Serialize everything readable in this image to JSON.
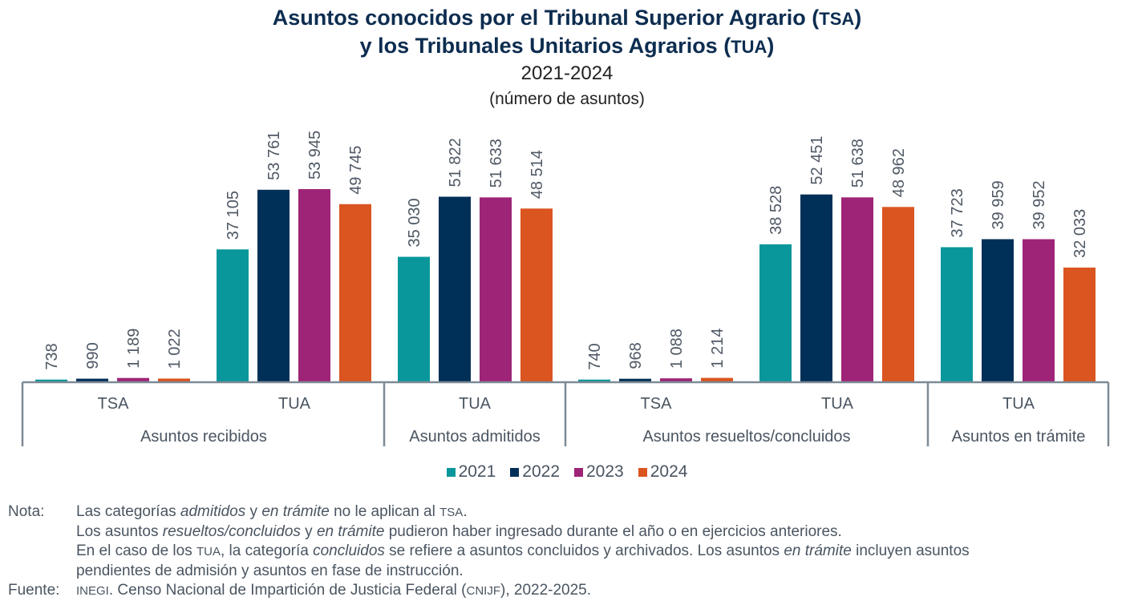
{
  "title": {
    "line1_text": "Asuntos conocidos por el Tribunal Superior Agrario (",
    "line1_abbr": "TSA",
    "line1_close": ")",
    "line2_text": "y los Tribunales Unitarios Agrarios (",
    "line2_abbr": "TUA",
    "line2_close": ")",
    "period": "2021-2024",
    "unit": "(número de asuntos)"
  },
  "colors": {
    "2021": "#0a979b",
    "2022": "#003057",
    "2023": "#9e2477",
    "2024": "#db5520",
    "axis": "#7d8a96"
  },
  "legend": [
    {
      "label": "2021",
      "color": "#0a979b"
    },
    {
      "label": "2022",
      "color": "#003057"
    },
    {
      "label": "2023",
      "color": "#9e2477"
    },
    {
      "label": "2024",
      "color": "#db5520"
    }
  ],
  "chart_data": {
    "type": "bar",
    "title": "Asuntos conocidos por el Tribunal Superior Agrario (TSA) y los Tribunales Unitarios Agrarios (TUA) 2021-2024 (número de asuntos)",
    "xlabel": "",
    "ylabel": "",
    "ylim": [
      0,
      60000
    ],
    "grid": false,
    "legend_position": "bottom",
    "categories": [
      {
        "group": "Asuntos recibidos",
        "sub": "TSA"
      },
      {
        "group": "Asuntos recibidos",
        "sub": "TUA"
      },
      {
        "group": "Asuntos admitidos",
        "sub": "TUA"
      },
      {
        "group": "Asuntos resueltos/concluidos",
        "sub": "TSA"
      },
      {
        "group": "Asuntos resueltos/concluidos",
        "sub": "TUA"
      },
      {
        "group": "Asuntos en trámite",
        "sub": "TUA"
      }
    ],
    "groups": [
      "Asuntos recibidos",
      "Asuntos admitidos",
      "Asuntos resueltos/concluidos",
      "Asuntos en trámite"
    ],
    "series": [
      {
        "name": "2021",
        "values": [
          738,
          37105,
          35030,
          740,
          38528,
          37723
        ],
        "labels": [
          "738",
          "37 105",
          "35 030",
          "740",
          "38 528",
          "37 723"
        ]
      },
      {
        "name": "2022",
        "values": [
          990,
          53761,
          51822,
          968,
          52451,
          39959
        ],
        "labels": [
          "990",
          "53 761",
          "51 822",
          "968",
          "52 451",
          "39 959"
        ]
      },
      {
        "name": "2023",
        "values": [
          1189,
          53945,
          51633,
          1088,
          51638,
          39952
        ],
        "labels": [
          "1 189",
          "53 945",
          "51 633",
          "1 088",
          "51 638",
          "39 952"
        ]
      },
      {
        "name": "2024",
        "values": [
          1022,
          49745,
          48514,
          1214,
          48962,
          32033
        ],
        "labels": [
          "1 022",
          "49 745",
          "48 514",
          "1 214",
          "48 962",
          "32 033"
        ]
      }
    ]
  },
  "notes": {
    "nota_label": "Nota:",
    "fuente_label": "Fuente:",
    "n1": {
      "a": "Las categorías ",
      "b": "admitidos",
      "c": " y ",
      "d": "en trámite",
      "e": " no le aplican al ",
      "f": "TSA",
      "g": "."
    },
    "n2": {
      "a": "Los asuntos ",
      "b": "resueltos/concluidos",
      "c": " y ",
      "d": "en trámite",
      "e": " pudieron haber ingresado durante el año o en ejercicios anteriores."
    },
    "n3": {
      "a": "En el caso de los ",
      "b": "TUA",
      "c": ", la categoría ",
      "d": "concluidos",
      "e": " se refiere a asuntos concluidos y archivados. Los asuntos ",
      "f": "en trámite",
      "g": " incluyen asuntos"
    },
    "n4": {
      "a": "pendientes de admisión y asuntos en fase de instrucción."
    },
    "source": {
      "a": "INEGI",
      "b": ". Censo Nacional de Impartición de Justicia Federal (",
      "c": "CNIJF",
      "d": "), 2022-2025."
    }
  }
}
